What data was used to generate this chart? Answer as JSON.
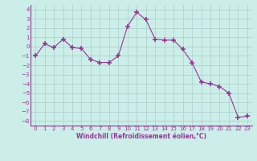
{
  "x": [
    0,
    1,
    2,
    3,
    4,
    5,
    6,
    7,
    8,
    9,
    10,
    11,
    12,
    13,
    14,
    15,
    16,
    17,
    18,
    19,
    20,
    21,
    22,
    23
  ],
  "y": [
    -1.0,
    0.3,
    -0.1,
    0.8,
    -0.1,
    -0.2,
    -1.4,
    -1.7,
    -1.7,
    -1.0,
    2.2,
    3.7,
    2.9,
    0.8,
    0.7,
    0.7,
    -0.3,
    -1.7,
    -3.8,
    -4.0,
    -4.3,
    -5.0,
    -7.6,
    -7.5
  ],
  "line_color": "#993399",
  "marker": "+",
  "marker_size": 4,
  "bg_color": "#cceee8",
  "grid_color": "#aacccc",
  "xlabel": "Windchill (Refroidissement éolien,°C)",
  "xlabel_color": "#993399",
  "tick_color": "#993399",
  "ylim": [
    -8.5,
    4.5
  ],
  "xlim": [
    -0.5,
    23.5
  ],
  "yticks": [
    -8,
    -7,
    -6,
    -5,
    -4,
    -3,
    -2,
    -1,
    0,
    1,
    2,
    3,
    4
  ],
  "xticks": [
    0,
    1,
    2,
    3,
    4,
    5,
    6,
    7,
    8,
    9,
    10,
    11,
    12,
    13,
    14,
    15,
    16,
    17,
    18,
    19,
    20,
    21,
    22,
    23
  ]
}
